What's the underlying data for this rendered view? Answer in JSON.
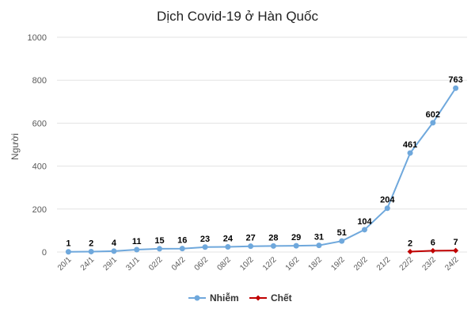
{
  "chart_data": {
    "type": "line",
    "title": "Dịch Covid-19 ở Hàn Quốc",
    "xlabel": "",
    "ylabel": "Người",
    "ylim": [
      0,
      1000
    ],
    "yticks": [
      0,
      200,
      400,
      600,
      800,
      1000
    ],
    "grid": true,
    "legend_position": "bottom",
    "categories": [
      "20/1",
      "24/1",
      "29/1",
      "31/1",
      "02/2",
      "04/2",
      "06/2",
      "08/2",
      "10/2",
      "12/2",
      "16/2",
      "18/2",
      "19/2",
      "20/2",
      "21/2",
      "22/2",
      "23/2",
      "24/2"
    ],
    "series": [
      {
        "name": "Nhiễm",
        "color": "#6fa8dc",
        "marker": "circle",
        "values": [
          1,
          2,
          4,
          11,
          15,
          16,
          23,
          24,
          27,
          28,
          29,
          31,
          51,
          104,
          204,
          461,
          602,
          763
        ]
      },
      {
        "name": "Chết",
        "color": "#c00000",
        "marker": "diamond",
        "values": [
          null,
          null,
          null,
          null,
          null,
          null,
          null,
          null,
          null,
          null,
          null,
          null,
          null,
          null,
          null,
          2,
          6,
          7
        ]
      }
    ]
  }
}
